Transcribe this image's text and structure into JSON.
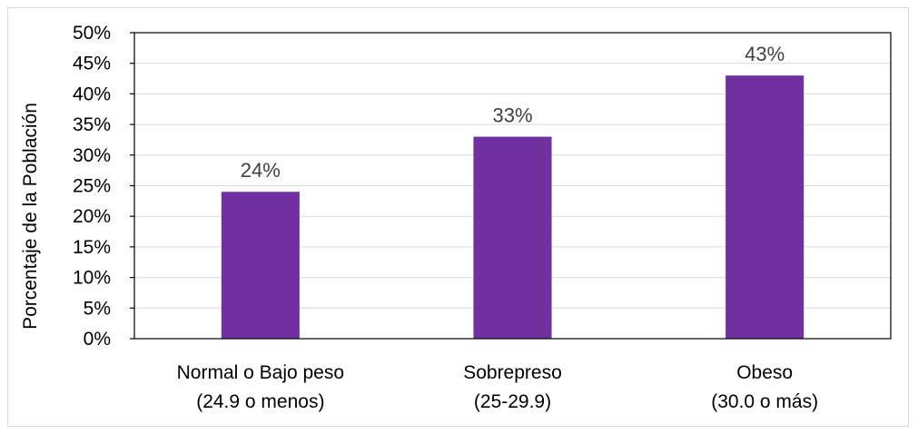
{
  "chart_data": {
    "type": "bar",
    "categories": [
      [
        "Normal o Bajo peso",
        "(24.9 o menos)"
      ],
      [
        "Sobrepreso",
        "(25-29.9)"
      ],
      [
        "Obeso",
        "(30.0 o más)"
      ]
    ],
    "values": [
      24,
      33,
      43
    ],
    "data_labels": [
      "24%",
      "33%",
      "43%"
    ],
    "ylabel": "Porcentaje de la Población",
    "ylim": [
      0,
      50
    ],
    "yticks": [
      "0%",
      "5%",
      "10%",
      "15%",
      "20%",
      "25%",
      "30%",
      "35%",
      "40%",
      "45%",
      "50%"
    ],
    "grid": true,
    "colors": {
      "bar": "#7030a0",
      "grid": "#d9d9d9",
      "axis": "#000000",
      "text": "#000000",
      "data_label": "#404040"
    }
  }
}
